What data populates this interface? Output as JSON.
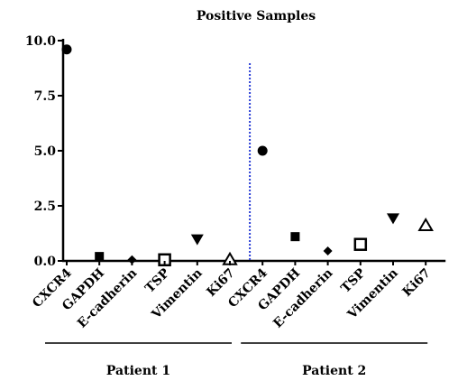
{
  "chart_data": {
    "type": "scatter",
    "title": "Positive Samples",
    "xlabel": "",
    "ylabel": "",
    "ylim": [
      0,
      10
    ],
    "yticks": [
      "0.0",
      "2.5",
      "5.0",
      "7.5",
      "10.0"
    ],
    "grid": false,
    "categories": [
      "CXCR4",
      "GAPDH",
      "E-cadherin",
      "TSP",
      "Vimentin",
      "Ki67",
      "CXCR4",
      "GAPDH",
      "E-cadherin",
      "TSP",
      "Vimentin",
      "Ki67"
    ],
    "groups": [
      {
        "label": "Patient 1",
        "start": 0,
        "end": 5
      },
      {
        "label": "Patient 2",
        "start": 6,
        "end": 11
      }
    ],
    "points": [
      {
        "category": "CXCR4",
        "group": "Patient 1",
        "value": 9.6,
        "marker": "circle"
      },
      {
        "category": "GAPDH",
        "group": "Patient 1",
        "value": 0.2,
        "marker": "square"
      },
      {
        "category": "E-cadherin",
        "group": "Patient 1",
        "value": 0.05,
        "marker": "diamond"
      },
      {
        "category": "TSP",
        "group": "Patient 1",
        "value": 0.05,
        "marker": "square-open"
      },
      {
        "category": "Vimentin",
        "group": "Patient 1",
        "value": 1.0,
        "marker": "triangle-down"
      },
      {
        "category": "Ki67",
        "group": "Patient 1",
        "value": 0.05,
        "marker": "triangle-open"
      },
      {
        "category": "CXCR4",
        "group": "Patient 2",
        "value": 5.0,
        "marker": "circle"
      },
      {
        "category": "GAPDH",
        "group": "Patient 2",
        "value": 1.1,
        "marker": "square"
      },
      {
        "category": "E-cadherin",
        "group": "Patient 2",
        "value": 0.45,
        "marker": "diamond"
      },
      {
        "category": "TSP",
        "group": "Patient 2",
        "value": 0.75,
        "marker": "square-open"
      },
      {
        "category": "Vimentin",
        "group": "Patient 2",
        "value": 1.95,
        "marker": "triangle-down"
      },
      {
        "category": "Ki67",
        "group": "Patient 2",
        "value": 1.6,
        "marker": "triangle-open"
      }
    ],
    "divider": {
      "between": [
        5,
        6
      ],
      "style": "dotted",
      "color": "#2b3fd6"
    },
    "colors": {
      "marker": "#000000",
      "axis": "#000000"
    }
  }
}
